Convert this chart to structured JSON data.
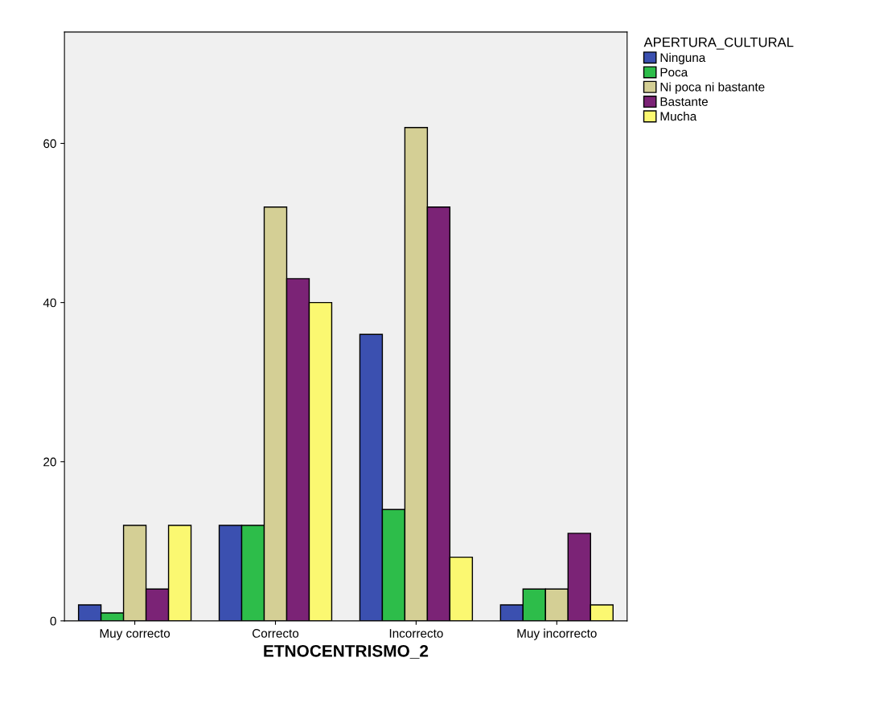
{
  "chart_data": {
    "type": "bar",
    "xlabel": "ETNOCENTRISMO_2",
    "legend_title": "APERTURA_CULTURAL",
    "legend": "top right",
    "categories": [
      "Muy correcto",
      "Correcto",
      "Incorrecto",
      "Muy incorrecto"
    ],
    "series": [
      {
        "name": "Ninguna",
        "color": "#3b50b0",
        "values": [
          2,
          12,
          36,
          2
        ]
      },
      {
        "name": "Poca",
        "color": "#2dbd4a",
        "values": [
          1,
          12,
          14,
          4
        ]
      },
      {
        "name": "Ni poca ni bastante",
        "color": "#d4cf95",
        "values": [
          12,
          52,
          62,
          4
        ]
      },
      {
        "name": "Bastante",
        "color": "#7b2376",
        "values": [
          4,
          43,
          52,
          11
        ]
      },
      {
        "name": "Mucha",
        "color": "#fbf871",
        "values": [
          12,
          40,
          8,
          2
        ]
      }
    ],
    "ylim": [
      0,
      74
    ],
    "yticks": [
      0,
      20,
      40,
      60
    ],
    "grid": false
  }
}
